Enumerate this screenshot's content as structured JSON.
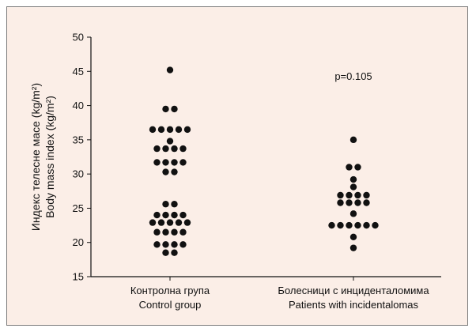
{
  "chart_data": {
    "type": "scatter",
    "ylabel_lines": [
      "Индекс телесне масе (kg/m²)",
      "Body mass index (kg/m²)"
    ],
    "ylim": [
      15,
      50
    ],
    "yticks": [
      15,
      20,
      25,
      30,
      35,
      40,
      45,
      50
    ],
    "categories": [
      {
        "lines": [
          "Контролна група",
          "Control group"
        ]
      },
      {
        "lines": [
          "Болесници с инциденталомима",
          "Patients with incidentalomas"
        ]
      }
    ],
    "annotation": "p=0.105",
    "grid": false,
    "colors": {
      "points": "#111111",
      "background": "#fbeee7",
      "axis": "#111111"
    },
    "series": [
      {
        "category_index": 0,
        "rows": [
          {
            "y": 45.2,
            "n": 1
          },
          {
            "y": 39.5,
            "n": 2
          },
          {
            "y": 36.5,
            "n": 5
          },
          {
            "y": 34.8,
            "n": 1
          },
          {
            "y": 33.7,
            "n": 4
          },
          {
            "y": 31.7,
            "n": 4
          },
          {
            "y": 30.3,
            "n": 2
          },
          {
            "y": 25.6,
            "n": 2
          },
          {
            "y": 24.0,
            "n": 4
          },
          {
            "y": 22.9,
            "n": 5
          },
          {
            "y": 21.5,
            "n": 4
          },
          {
            "y": 19.7,
            "n": 4
          },
          {
            "y": 18.5,
            "n": 2
          }
        ]
      },
      {
        "category_index": 1,
        "rows": [
          {
            "y": 35.0,
            "n": 1
          },
          {
            "y": 31.0,
            "n": 2
          },
          {
            "y": 29.2,
            "n": 1
          },
          {
            "y": 28.1,
            "n": 1
          },
          {
            "y": 26.9,
            "n": 4
          },
          {
            "y": 25.8,
            "n": 4
          },
          {
            "y": 24.2,
            "n": 1
          },
          {
            "y": 22.5,
            "n": 6
          },
          {
            "y": 20.8,
            "n": 1
          },
          {
            "y": 19.2,
            "n": 1
          }
        ]
      }
    ]
  }
}
